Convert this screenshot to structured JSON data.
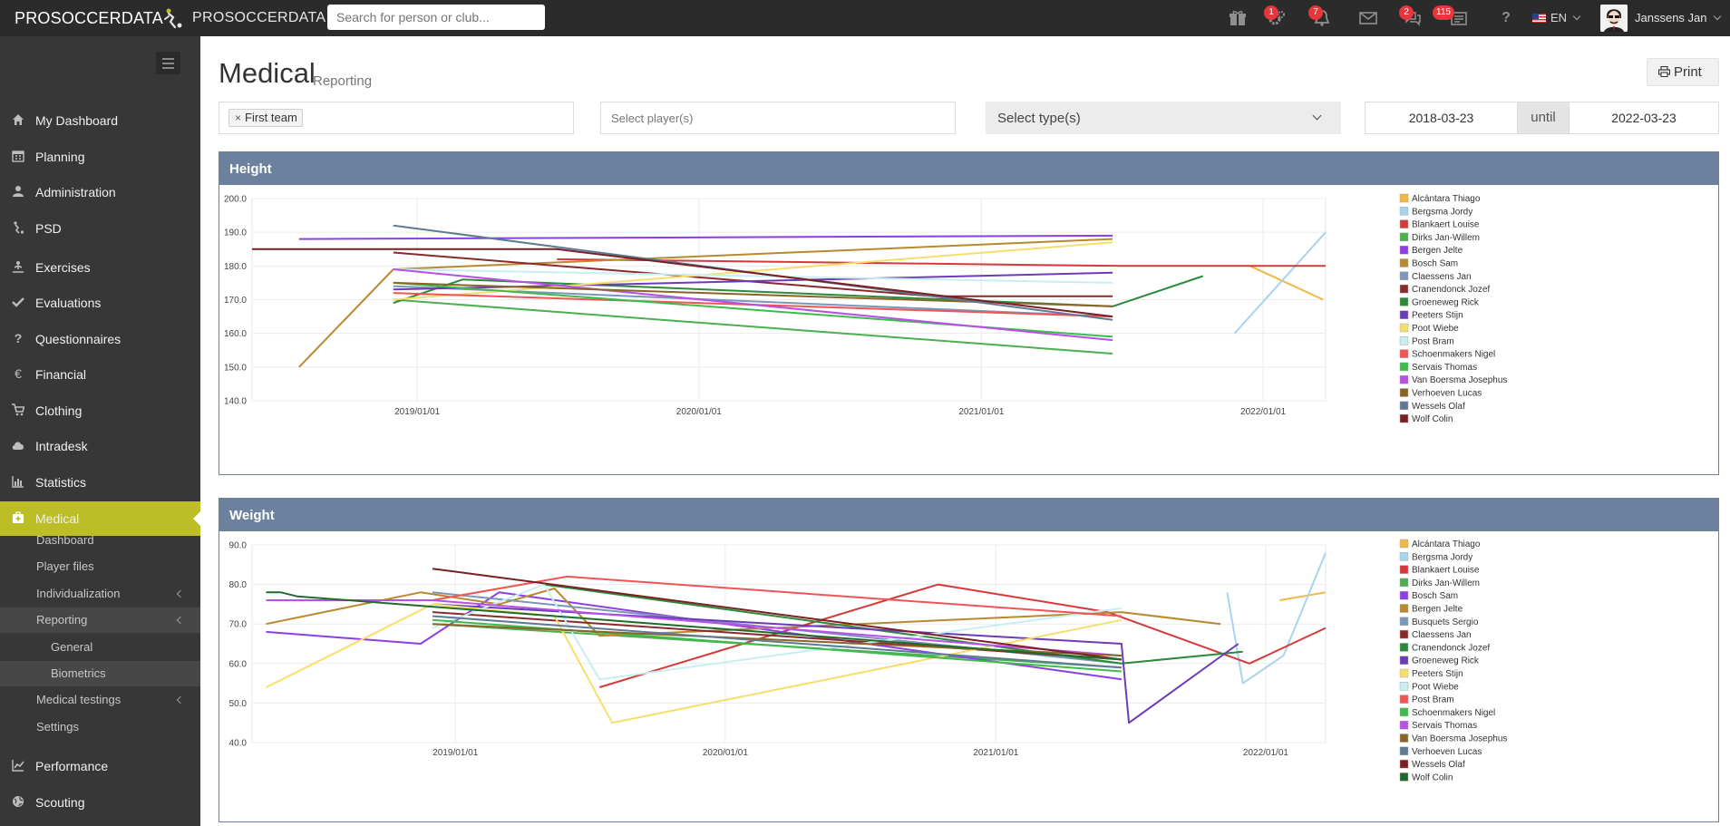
{
  "topbar": {
    "brand_pre": "PRO",
    "brand_post": "SOCCERDATA",
    "brand_secondary": "PROSOCCERDATA",
    "search_placeholder": "Search for person or club...",
    "badges": {
      "settings": "1",
      "notifications": "7",
      "chat": "2",
      "messages": "115"
    },
    "language": "EN",
    "user_name": "Janssens Jan"
  },
  "sidebar": {
    "items": [
      {
        "label": "My Dashboard",
        "icon": "home-icon"
      },
      {
        "label": "Planning",
        "icon": "calendar-icon"
      },
      {
        "label": "Administration",
        "icon": "user-icon"
      },
      {
        "label": "PSD",
        "icon": "soccer-player-icon"
      },
      {
        "label": "Exercises",
        "icon": "exercise-icon"
      },
      {
        "label": "Evaluations",
        "icon": "check-icon"
      },
      {
        "label": "Questionnaires",
        "icon": "question-icon"
      },
      {
        "label": "Financial",
        "icon": "euro-icon"
      },
      {
        "label": "Clothing",
        "icon": "cart-icon"
      },
      {
        "label": "Intradesk",
        "icon": "cloud-icon"
      },
      {
        "label": "Statistics",
        "icon": "bar-chart-icon"
      },
      {
        "label": "Medical",
        "icon": "medkit-icon"
      },
      {
        "label": "Performance",
        "icon": "line-chart-icon"
      },
      {
        "label": "Scouting",
        "icon": "globe-icon"
      }
    ],
    "medical_sub": [
      "Dashboard",
      "Player files",
      "Individualization",
      "Reporting",
      "General",
      "Biometrics",
      "Medical testings",
      "Settings"
    ]
  },
  "page": {
    "title": "Medical",
    "subtitle": "Reporting",
    "print_label": "Print",
    "team_tag": "First team",
    "player_placeholder": "Select player(s)",
    "type_placeholder": "Select type(s)",
    "date_from": "2018-03-23",
    "until_label": "until",
    "date_to": "2022-03-23"
  },
  "colors": {
    "topbar": "#2b2b2b",
    "sidebar": "#373737",
    "accent": "#bcbd27",
    "panel_header": "#6b819e",
    "badge": "#e5373c"
  },
  "chart_data": [
    {
      "type": "line",
      "title": "Height",
      "ylim": [
        140,
        200
      ],
      "yticks": [
        "140.0",
        "150.0",
        "160.0",
        "170.0",
        "180.0",
        "190.0",
        "200.0"
      ],
      "xlim": [
        "2018-06-01",
        "2022-03-23"
      ],
      "xticks": [
        "2019/01/01",
        "2020/01/01",
        "2021/01/01",
        "2022/01/01"
      ],
      "grid": true,
      "legend_position": "right",
      "series": [
        {
          "name": "Alcántara Thiago",
          "color": "#f2b845",
          "points": [
            [
              "2021-12-15",
              180
            ],
            [
              "2022-03-20",
              170
            ]
          ]
        },
        {
          "name": "Bergsma Jordy",
          "color": "#a8d4ef",
          "points": [
            [
              "2021-11-25",
              160
            ],
            [
              "2022-03-23",
              190
            ]
          ]
        },
        {
          "name": "Blankaert Louise",
          "color": "#d6393a",
          "points": [
            [
              "2019-07-01",
              182
            ],
            [
              "2021-07-01",
              180
            ],
            [
              "2022-03-23",
              180
            ]
          ]
        },
        {
          "name": "Dirks Jan-Willem",
          "color": "#4caf50",
          "points": [
            [
              "2018-12-01",
              170
            ],
            [
              "2021-06-20",
              154
            ]
          ]
        },
        {
          "name": "Bergen Jelte",
          "color": "#8e3ee6",
          "points": [
            [
              "2018-08-01",
              188
            ],
            [
              "2021-06-20",
              189
            ]
          ]
        },
        {
          "name": "Bosch Sam",
          "color": "#b8892e",
          "points": [
            [
              "2018-08-01",
              150
            ],
            [
              "2018-12-01",
              179
            ],
            [
              "2021-06-20",
              188
            ]
          ]
        },
        {
          "name": "Claessens Jan",
          "color": "#7a96b8",
          "points": [
            [
              "2018-12-01",
              174
            ],
            [
              "2021-06-20",
              165
            ]
          ]
        },
        {
          "name": "Cranendonck Jozef",
          "color": "#8b2a2a",
          "points": [
            [
              "2018-12-01",
              184
            ],
            [
              "2020-11-01",
              171
            ],
            [
              "2021-06-20",
              171
            ]
          ]
        },
        {
          "name": "Groeneweg Rick",
          "color": "#2c8a3a",
          "points": [
            [
              "2018-12-01",
              169
            ],
            [
              "2019-03-01",
              176
            ],
            [
              "2021-06-20",
              168
            ],
            [
              "2021-10-15",
              177
            ]
          ]
        },
        {
          "name": "Peeters Stijn",
          "color": "#6b3bb8",
          "points": [
            [
              "2018-12-01",
              173
            ],
            [
              "2021-06-20",
              178
            ]
          ]
        },
        {
          "name": "Poot Wiebe",
          "color": "#f5df6b",
          "points": [
            [
              "2018-12-01",
              170
            ],
            [
              "2021-06-20",
              187
            ]
          ]
        },
        {
          "name": "Post Bram",
          "color": "#c8eef0",
          "points": [
            [
              "2018-12-01",
              179
            ],
            [
              "2021-06-20",
              175
            ]
          ]
        },
        {
          "name": "Schoenmakers Nigel",
          "color": "#f05454",
          "points": [
            [
              "2018-12-01",
              172
            ],
            [
              "2021-06-20",
              165
            ]
          ]
        },
        {
          "name": "Servais Thomas",
          "color": "#3dbb4d",
          "points": [
            [
              "2018-12-01",
              175
            ],
            [
              "2021-06-20",
              159
            ]
          ]
        },
        {
          "name": "Van Boersma Josephus",
          "color": "#b74fe8",
          "points": [
            [
              "2018-12-01",
              179
            ],
            [
              "2021-06-20",
              158
            ]
          ]
        },
        {
          "name": "Verhoeven Lucas",
          "color": "#8a6428",
          "points": [
            [
              "2018-12-01",
              175
            ],
            [
              "2021-06-20",
              168
            ]
          ]
        },
        {
          "name": "Wessels Olaf",
          "color": "#5e7a94",
          "points": [
            [
              "2018-12-01",
              192
            ],
            [
              "2021-06-20",
              164
            ]
          ]
        },
        {
          "name": "Wolf Colin",
          "color": "#7a1f24",
          "points": [
            [
              "2018-06-01",
              185
            ],
            [
              "2019-07-01",
              185
            ],
            [
              "2021-06-20",
              165
            ]
          ]
        }
      ]
    },
    {
      "type": "line",
      "title": "Weight",
      "ylim": [
        40,
        90
      ],
      "yticks": [
        "40.0",
        "50.0",
        "60.0",
        "70.0",
        "80.0",
        "90.0"
      ],
      "xlim": [
        "2018-04-01",
        "2022-03-23"
      ],
      "xticks": [
        "2019/01/01",
        "2020/01/01",
        "2021/01/01",
        "2022/01/01"
      ],
      "grid": true,
      "legend_position": "right",
      "series": [
        {
          "name": "Alcántara Thiago",
          "color": "#f2b845",
          "points": [
            [
              "2022-01-20",
              76
            ],
            [
              "2022-03-23",
              78
            ]
          ]
        },
        {
          "name": "Bergsma Jordy",
          "color": "#a8d4ef",
          "points": [
            [
              "2021-11-10",
              78
            ],
            [
              "2021-12-01",
              55
            ],
            [
              "2022-01-25",
              62
            ],
            [
              "2022-03-23",
              88
            ]
          ]
        },
        {
          "name": "Blankaert Louise",
          "color": "#d6393a",
          "points": [
            [
              "2019-07-15",
              54
            ],
            [
              "2020-10-15",
              80
            ],
            [
              "2021-06-01",
              73
            ],
            [
              "2021-12-10",
              60
            ],
            [
              "2022-03-23",
              69
            ]
          ]
        },
        {
          "name": "Dirks Jan-Willem",
          "color": "#4caf50",
          "points": [
            [
              "2018-12-01",
              70
            ],
            [
              "2021-06-20",
              59
            ]
          ]
        },
        {
          "name": "Bosch Sam",
          "color": "#8e3ee6",
          "points": [
            [
              "2018-04-20",
              68
            ],
            [
              "2018-11-15",
              65
            ],
            [
              "2019-03-01",
              78
            ],
            [
              "2021-06-20",
              56
            ]
          ]
        },
        {
          "name": "Bergen Jelte",
          "color": "#b8892e",
          "points": [
            [
              "2018-04-20",
              70
            ],
            [
              "2018-11-15",
              78
            ],
            [
              "2019-03-01",
              75
            ],
            [
              "2019-05-15",
              79
            ],
            [
              "2019-07-15",
              67
            ],
            [
              "2021-06-20",
              73
            ],
            [
              "2021-11-01",
              70
            ]
          ]
        },
        {
          "name": "Busquets Sergio",
          "color": "#7a96b8",
          "points": [
            [
              "2018-12-01",
              78
            ],
            [
              "2021-06-20",
              60
            ]
          ]
        },
        {
          "name": "Claessens Jan",
          "color": "#8b2a2a",
          "points": [
            [
              "2018-12-01",
              73
            ],
            [
              "2021-06-20",
              61
            ]
          ]
        },
        {
          "name": "Cranendonck Jozef",
          "color": "#2c8a3a",
          "points": [
            [
              "2019-05-01",
              80
            ],
            [
              "2021-06-20",
              60
            ],
            [
              "2021-12-01",
              63
            ]
          ]
        },
        {
          "name": "Groeneweg Rick",
          "color": "#6b3bb8",
          "points": [
            [
              "2018-12-01",
              75
            ],
            [
              "2021-06-20",
              65
            ],
            [
              "2021-06-30",
              45
            ],
            [
              "2021-11-25",
              65
            ]
          ]
        },
        {
          "name": "Peeters Stijn",
          "color": "#f5df6b",
          "points": [
            [
              "2018-04-20",
              54
            ],
            [
              "2018-12-01",
              75
            ],
            [
              "2019-05-15",
              72
            ],
            [
              "2019-08-01",
              45
            ],
            [
              "2021-06-20",
              71
            ]
          ]
        },
        {
          "name": "Poot Wiebe",
          "color": "#c8eef0",
          "points": [
            [
              "2018-12-01",
              69
            ],
            [
              "2019-05-01",
              80
            ],
            [
              "2019-07-15",
              56
            ],
            [
              "2021-06-20",
              74
            ]
          ]
        },
        {
          "name": "Post Bram",
          "color": "#f05454",
          "points": [
            [
              "2018-12-01",
              76
            ],
            [
              "2019-06-01",
              82
            ],
            [
              "2021-06-20",
              72
            ]
          ]
        },
        {
          "name": "Schoenmakers Nigel",
          "color": "#3dbb4d",
          "points": [
            [
              "2018-12-01",
              71
            ],
            [
              "2021-06-20",
              58
            ]
          ]
        },
        {
          "name": "Servais Thomas",
          "color": "#b74fe8",
          "points": [
            [
              "2018-04-20",
              76
            ],
            [
              "2018-12-01",
              76
            ],
            [
              "2021-06-20",
              62
            ]
          ]
        },
        {
          "name": "Van Boersma Josephus",
          "color": "#8a6428",
          "points": [
            [
              "2018-12-01",
              70
            ],
            [
              "2021-06-20",
              62
            ]
          ]
        },
        {
          "name": "Verhoeven Lucas",
          "color": "#5e7a94",
          "points": [
            [
              "2018-12-01",
              72
            ],
            [
              "2021-06-20",
              59
            ]
          ]
        },
        {
          "name": "Wessels Olaf",
          "color": "#7a1f24",
          "points": [
            [
              "2018-12-01",
              84
            ],
            [
              "2021-06-20",
              61
            ]
          ]
        },
        {
          "name": "Wolf Colin",
          "color": "#1f6b2c",
          "points": [
            [
              "2018-04-20",
              78
            ],
            [
              "2018-05-10",
              78
            ],
            [
              "2018-06-01",
              77
            ],
            [
              "2021-06-20",
              61
            ]
          ]
        }
      ]
    }
  ]
}
